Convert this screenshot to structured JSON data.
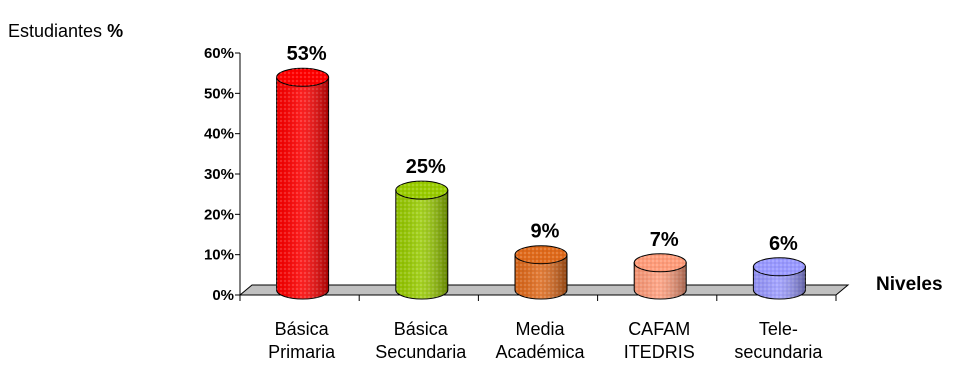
{
  "chart_data": {
    "type": "bar",
    "ylabel_text": "Estudiantes",
    "ylabel_symbol": "%",
    "xlabel": "Niveles",
    "categories": [
      [
        "Básica",
        "Primaria"
      ],
      [
        "Básica",
        "Secundaria"
      ],
      [
        "Media",
        "Académica"
      ],
      [
        "CAFAM",
        "ITEDRIS"
      ],
      [
        "Tele-",
        "secundaria"
      ]
    ],
    "values": [
      53,
      25,
      9,
      7,
      6
    ],
    "value_labels": [
      "53%",
      "25%",
      "9%",
      "7%",
      "6%"
    ],
    "ylim": [
      0,
      60
    ],
    "yticks": [
      0,
      10,
      20,
      30,
      40,
      50,
      60
    ],
    "ytick_labels": [
      "0%",
      "10%",
      "20%",
      "30%",
      "40%",
      "50%",
      "60%"
    ],
    "colors": [
      "#ff0000",
      "#99cc00",
      "#e06a1b",
      "#ff9c7a",
      "#9999ff"
    ],
    "bar_style": "3d-cylinder",
    "floor_color": "#c0c0c0",
    "grid": false,
    "legend": false
  }
}
